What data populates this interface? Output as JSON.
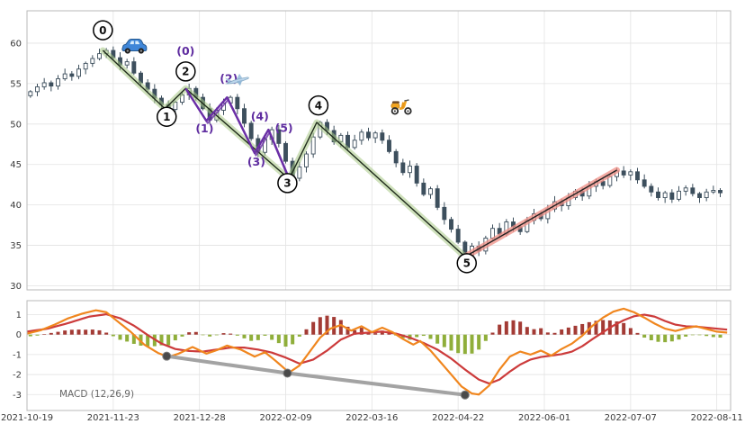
{
  "colors": {
    "background": "#ffffff",
    "grid": "#e3e3e3",
    "border": "#b9b9b9",
    "tick_text": "#3a3a3a",
    "candle_outline": "#3d4f5d",
    "candle_down_fill": "#3d4f5d",
    "candle_up_fill": "#ffffff",
    "main_wave_band": "#a8c985",
    "wave_core": "#1e2a1a",
    "impulse_band": "#f08f86",
    "impulse_core": "#222222",
    "subwave": "#6a2ea6",
    "sub_label": "#5f2da0",
    "macd": "#f0861e",
    "signal": "#cc3b3b",
    "hist_pos": "#a33b35",
    "hist_neg": "#8fae3a",
    "divergence": "#a3a3a3",
    "divergence_dot": "#4a4a4a"
  },
  "chart_data": [
    {
      "type": "candlestick",
      "title": "",
      "ylabel": "",
      "yticks": [
        30,
        35,
        40,
        45,
        50,
        55,
        60
      ],
      "ylim": [
        29.5,
        64
      ],
      "day_domain": [
        0,
        204
      ],
      "x_tick_days": [
        0,
        25,
        50,
        75,
        100,
        125,
        150,
        175,
        200
      ],
      "x_tick_labels": [
        "2021-10-19",
        "2021-11-23",
        "2021-12-28",
        "2022-02-09",
        "2022-03-16",
        "2022-04-22",
        "2022-06-01",
        "2022-07-07",
        "2022-08-11"
      ],
      "candles": {
        "start_day": 1,
        "day_step": 2,
        "first_open": 53.5,
        "closes": [
          54.0,
          54.6,
          55.1,
          54.7,
          55.6,
          56.2,
          55.9,
          56.8,
          57.5,
          58.1,
          58.7,
          59.1,
          58.2,
          57.3,
          57.7,
          56.3,
          55.1,
          54.3,
          53.2,
          52.4,
          51.8,
          52.7,
          53.6,
          54.4,
          53.3,
          51.9,
          50.5,
          51.7,
          52.6,
          53.3,
          51.9,
          50.1,
          48.2,
          46.5,
          48.1,
          49.3,
          47.6,
          45.4,
          43.3,
          44.7,
          46.3,
          48.4,
          50.2,
          49.2,
          47.8,
          48.6,
          47.1,
          48.0,
          49.0,
          48.3,
          48.9,
          48.0,
          46.6,
          45.2,
          44.0,
          44.8,
          42.7,
          41.3,
          42.0,
          39.7,
          38.2,
          37.0,
          35.4,
          33.8,
          34.9,
          34.3,
          35.9,
          37.1,
          36.4,
          37.9,
          37.3,
          36.7,
          38.1,
          38.9,
          38.3,
          39.5,
          40.4,
          39.9,
          40.9,
          41.7,
          41.1,
          42.3,
          42.9,
          42.4,
          43.5,
          44.2,
          43.7,
          44.1,
          43.1,
          42.3,
          41.6,
          40.9,
          41.5,
          40.7,
          41.7,
          42.1,
          41.4,
          40.9,
          41.6,
          41.8,
          41.5
        ]
      },
      "elliott_waves": {
        "main_line_points": [
          [
            22,
            59.1
          ],
          [
            40,
            51.9
          ],
          [
            46,
            54.4
          ],
          [
            76,
            43.2
          ],
          [
            84,
            50.2
          ],
          [
            127,
            33.6
          ]
        ],
        "impulse_line_points": [
          [
            127,
            33.6
          ],
          [
            171,
            44.3
          ]
        ],
        "main_labels": [
          {
            "text": "0",
            "day": 22,
            "price": 61.6
          },
          {
            "text": "1",
            "day": 40.5,
            "price": 50.9
          },
          {
            "text": "2",
            "day": 46,
            "price": 56.5
          },
          {
            "text": "3",
            "day": 75.5,
            "price": 42.7
          },
          {
            "text": "4",
            "day": 84.5,
            "price": 52.3
          },
          {
            "text": "5",
            "day": 127.5,
            "price": 32.8
          }
        ],
        "sub_line_points": [
          [
            46,
            54.4
          ],
          [
            52,
            50.4
          ],
          [
            58,
            53.3
          ],
          [
            66,
            46.4
          ],
          [
            70,
            49.3
          ],
          [
            76,
            43.2
          ]
        ],
        "sub_labels": [
          {
            "text": "(0)",
            "day": 46,
            "price": 59.0
          },
          {
            "text": "(1)",
            "day": 51.5,
            "price": 49.4
          },
          {
            "text": "(2)",
            "day": 58.5,
            "price": 55.6
          },
          {
            "text": "(3)",
            "day": 66.5,
            "price": 45.3
          },
          {
            "text": "(4)",
            "day": 67.5,
            "price": 50.9
          },
          {
            "text": "(5)",
            "day": 74.5,
            "price": 49.5
          }
        ]
      },
      "markers": [
        {
          "icon": "car",
          "day": 31,
          "price": 59.6
        },
        {
          "icon": "plane",
          "day": 61,
          "price": 55.4
        },
        {
          "icon": "scooter",
          "day": 108.5,
          "price": 52.3
        }
      ]
    },
    {
      "type": "macd",
      "label": "MACD (12,26,9)",
      "yticks": [
        -3,
        -2,
        -1,
        0,
        1
      ],
      "ylim": [
        -3.8,
        1.7
      ],
      "macd_line": [
        [
          0,
          0.05
        ],
        [
          4,
          0.22
        ],
        [
          8,
          0.5
        ],
        [
          12,
          0.82
        ],
        [
          16,
          1.05
        ],
        [
          20,
          1.22
        ],
        [
          23,
          1.12
        ],
        [
          26,
          0.7
        ],
        [
          30,
          0.15
        ],
        [
          34,
          -0.5
        ],
        [
          38,
          -0.92
        ],
        [
          41,
          -1.12
        ],
        [
          44,
          -0.95
        ],
        [
          48,
          -0.62
        ],
        [
          52,
          -0.95
        ],
        [
          55,
          -0.78
        ],
        [
          58,
          -0.55
        ],
        [
          62,
          -0.75
        ],
        [
          66,
          -1.1
        ],
        [
          69,
          -0.88
        ],
        [
          72,
          -1.3
        ],
        [
          76,
          -1.9
        ],
        [
          79,
          -1.55
        ],
        [
          82,
          -0.85
        ],
        [
          85,
          -0.15
        ],
        [
          88,
          0.3
        ],
        [
          91,
          0.48
        ],
        [
          94,
          0.2
        ],
        [
          97,
          0.42
        ],
        [
          100,
          0.12
        ],
        [
          103,
          0.35
        ],
        [
          106,
          0.12
        ],
        [
          109,
          -0.22
        ],
        [
          112,
          -0.5
        ],
        [
          114,
          -0.32
        ],
        [
          117,
          -0.8
        ],
        [
          120,
          -1.4
        ],
        [
          123,
          -2.0
        ],
        [
          126,
          -2.6
        ],
        [
          129,
          -2.95
        ],
        [
          131,
          -3.0
        ],
        [
          134,
          -2.55
        ],
        [
          137,
          -1.75
        ],
        [
          140,
          -1.1
        ],
        [
          143,
          -0.85
        ],
        [
          146,
          -1.0
        ],
        [
          149,
          -0.8
        ],
        [
          152,
          -1.05
        ],
        [
          155,
          -0.72
        ],
        [
          158,
          -0.45
        ],
        [
          161,
          -0.05
        ],
        [
          164,
          0.45
        ],
        [
          167,
          0.85
        ],
        [
          170,
          1.15
        ],
        [
          173,
          1.3
        ],
        [
          176,
          1.12
        ],
        [
          179,
          0.85
        ],
        [
          182,
          0.55
        ],
        [
          185,
          0.3
        ],
        [
          188,
          0.18
        ],
        [
          191,
          0.32
        ],
        [
          194,
          0.42
        ],
        [
          197,
          0.28
        ],
        [
          200,
          0.15
        ],
        [
          203,
          0.1
        ]
      ],
      "signal_line": [
        [
          0,
          0.15
        ],
        [
          6,
          0.3
        ],
        [
          12,
          0.58
        ],
        [
          18,
          0.9
        ],
        [
          23,
          1.02
        ],
        [
          27,
          0.82
        ],
        [
          31,
          0.45
        ],
        [
          35,
          -0.02
        ],
        [
          39,
          -0.45
        ],
        [
          43,
          -0.72
        ],
        [
          47,
          -0.82
        ],
        [
          51,
          -0.85
        ],
        [
          55,
          -0.75
        ],
        [
          59,
          -0.65
        ],
        [
          63,
          -0.65
        ],
        [
          67,
          -0.75
        ],
        [
          71,
          -0.9
        ],
        [
          75,
          -1.15
        ],
        [
          79,
          -1.45
        ],
        [
          83,
          -1.25
        ],
        [
          87,
          -0.8
        ],
        [
          91,
          -0.25
        ],
        [
          95,
          0.05
        ],
        [
          99,
          0.1
        ],
        [
          103,
          0.15
        ],
        [
          107,
          0.05
        ],
        [
          111,
          -0.15
        ],
        [
          115,
          -0.42
        ],
        [
          119,
          -0.75
        ],
        [
          123,
          -1.2
        ],
        [
          127,
          -1.75
        ],
        [
          131,
          -2.25
        ],
        [
          134,
          -2.45
        ],
        [
          137,
          -2.25
        ],
        [
          140,
          -1.85
        ],
        [
          143,
          -1.5
        ],
        [
          146,
          -1.25
        ],
        [
          149,
          -1.12
        ],
        [
          152,
          -1.05
        ],
        [
          155,
          -0.98
        ],
        [
          158,
          -0.85
        ],
        [
          161,
          -0.58
        ],
        [
          164,
          -0.22
        ],
        [
          167,
          0.12
        ],
        [
          170,
          0.45
        ],
        [
          173,
          0.72
        ],
        [
          176,
          0.92
        ],
        [
          179,
          1.0
        ],
        [
          182,
          0.9
        ],
        [
          185,
          0.68
        ],
        [
          188,
          0.5
        ],
        [
          191,
          0.42
        ],
        [
          194,
          0.4
        ],
        [
          197,
          0.35
        ],
        [
          200,
          0.3
        ],
        [
          203,
          0.25
        ]
      ],
      "histogram": "macd_minus_signal",
      "divergence_points": [
        [
          40.5,
          -1.08
        ],
        [
          75.5,
          -1.93
        ],
        [
          127,
          -3.02
        ]
      ]
    }
  ]
}
